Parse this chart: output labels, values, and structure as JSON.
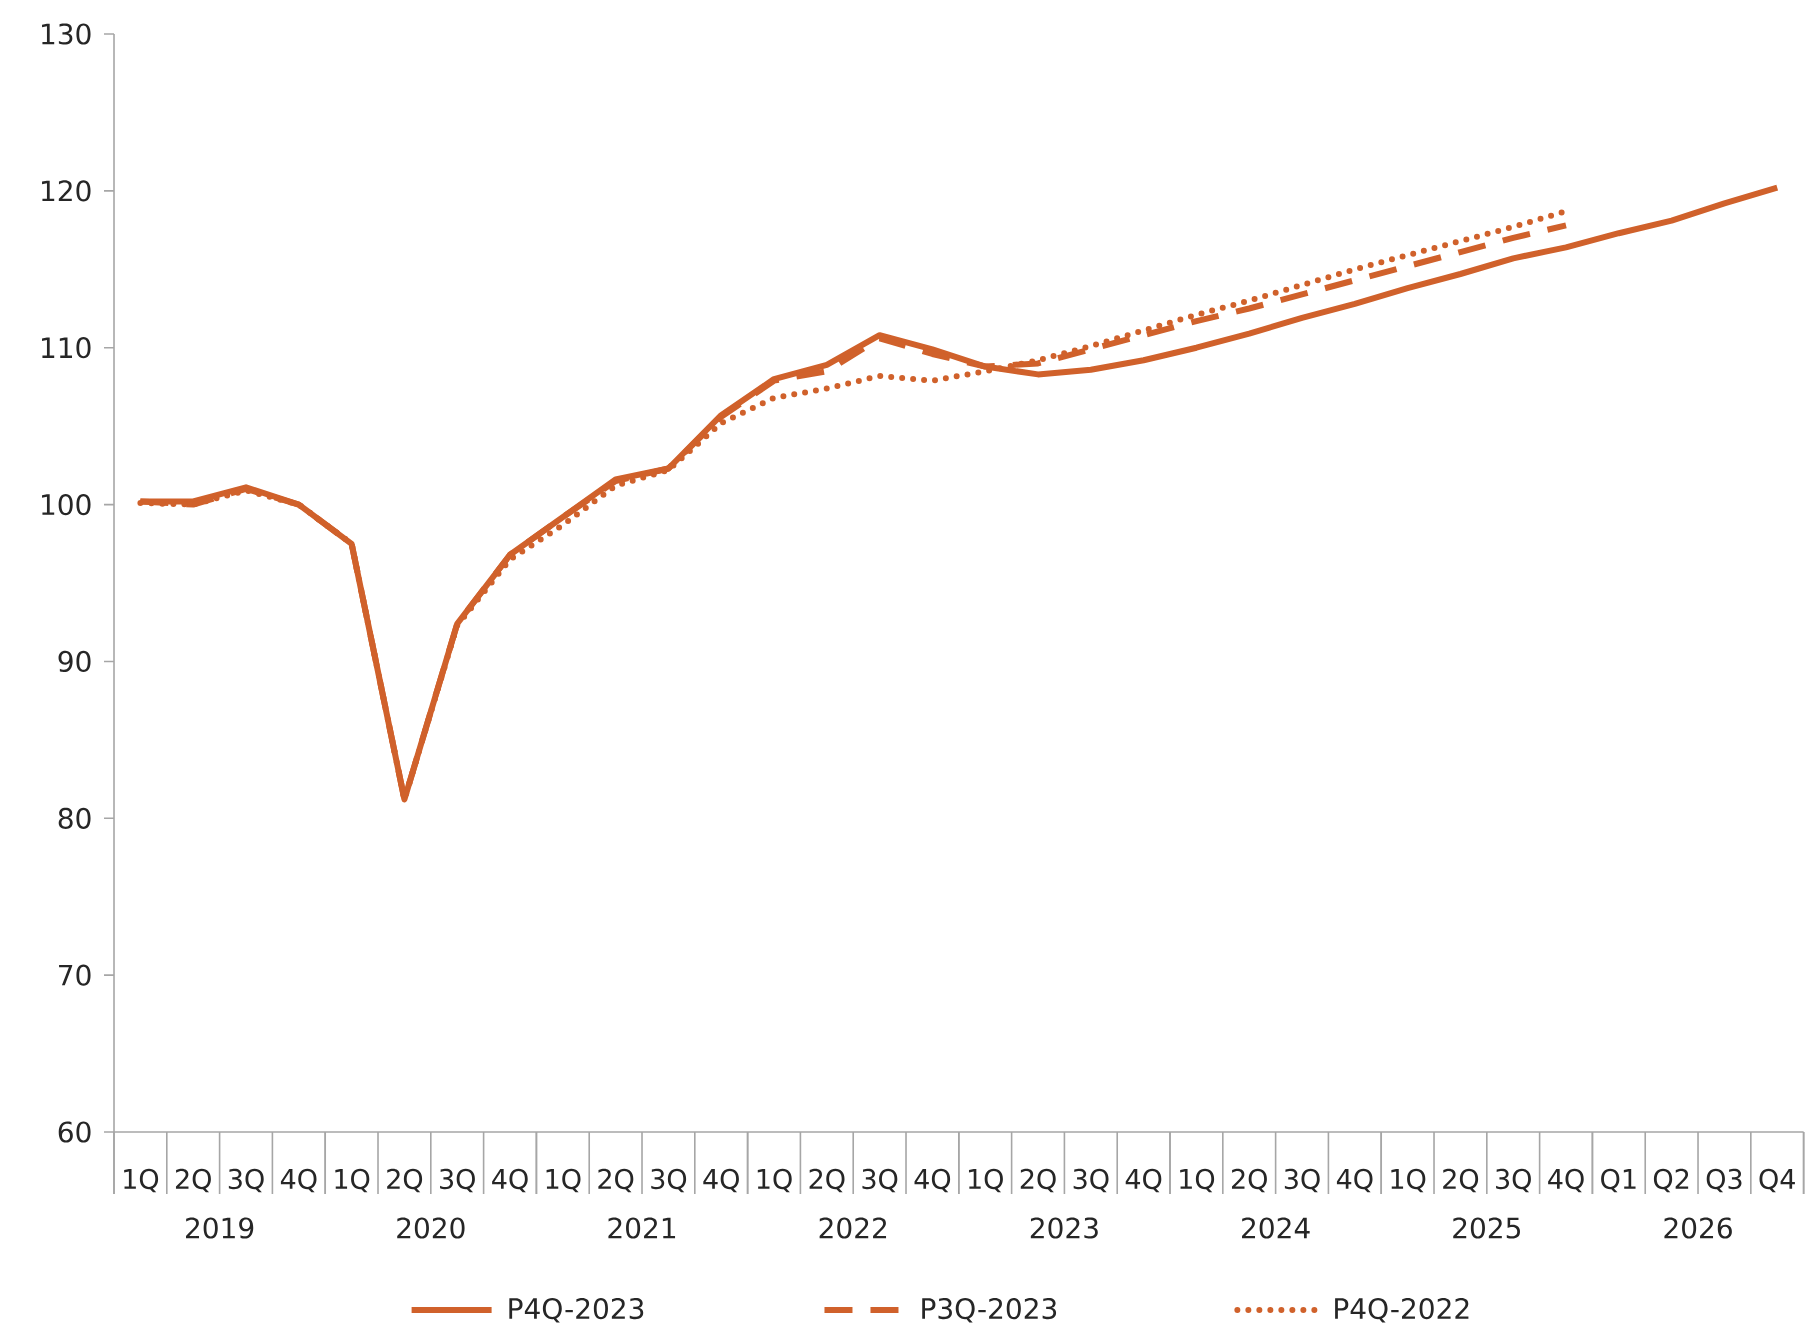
{
  "chart_data": {
    "type": "line",
    "categories": [
      "1Q",
      "2Q",
      "3Q",
      "4Q",
      "1Q",
      "2Q",
      "3Q",
      "4Q",
      "1Q",
      "2Q",
      "3Q",
      "4Q",
      "1Q",
      "2Q",
      "3Q",
      "4Q",
      "1Q",
      "2Q",
      "3Q",
      "4Q",
      "1Q",
      "2Q",
      "3Q",
      "4Q",
      "1Q",
      "2Q",
      "3Q",
      "4Q",
      "Q1",
      "Q2",
      "Q3",
      "Q4"
    ],
    "annotations": [
      "2019",
      "2020",
      "2021",
      "2022",
      "2023",
      "2024",
      "2025",
      "2026"
    ],
    "ylim": [
      60,
      130
    ],
    "yticks": [
      60,
      70,
      80,
      90,
      100,
      110,
      120,
      130
    ],
    "legend": "bottom",
    "marker": "none",
    "series": [
      {
        "name": "P4Q-2023",
        "color": "#d0612b",
        "line_style": "solid",
        "values": [
          100.2,
          100.2,
          101.1,
          100.0,
          97.5,
          81.2,
          92.4,
          96.8,
          99.2,
          101.6,
          102.3,
          105.7,
          108.0,
          108.9,
          110.8,
          109.9,
          108.8,
          108.3,
          108.6,
          109.2,
          110.0,
          110.9,
          111.9,
          112.8,
          113.8,
          114.7,
          115.7,
          116.4,
          117.3,
          118.1,
          119.2,
          120.2
        ]
      },
      {
        "name": "P3Q-2023",
        "color": "#d0612b",
        "line_style": "dashed",
        "values": [
          100.2,
          100.0,
          101.0,
          100.0,
          97.5,
          81.2,
          92.4,
          96.8,
          99.2,
          101.5,
          102.3,
          105.6,
          107.9,
          108.5,
          110.6,
          109.6,
          108.8,
          109.0,
          109.9,
          110.8,
          111.7,
          112.5,
          113.4,
          114.3,
          115.2,
          116.1,
          117.0,
          117.8,
          null,
          null,
          null,
          null
        ]
      },
      {
        "name": "P4Q-2022",
        "color": "#d0612b",
        "line_style": "dotted",
        "values": [
          100.1,
          100.0,
          100.9,
          100.0,
          97.5,
          81.2,
          92.3,
          96.5,
          98.7,
          101.2,
          102.2,
          105.2,
          106.8,
          107.4,
          108.2,
          107.9,
          108.5,
          109.2,
          110.1,
          111.1,
          112.1,
          113.0,
          114.0,
          115.0,
          115.9,
          116.8,
          117.7,
          118.7,
          null,
          null,
          null,
          null
        ]
      }
    ]
  }
}
